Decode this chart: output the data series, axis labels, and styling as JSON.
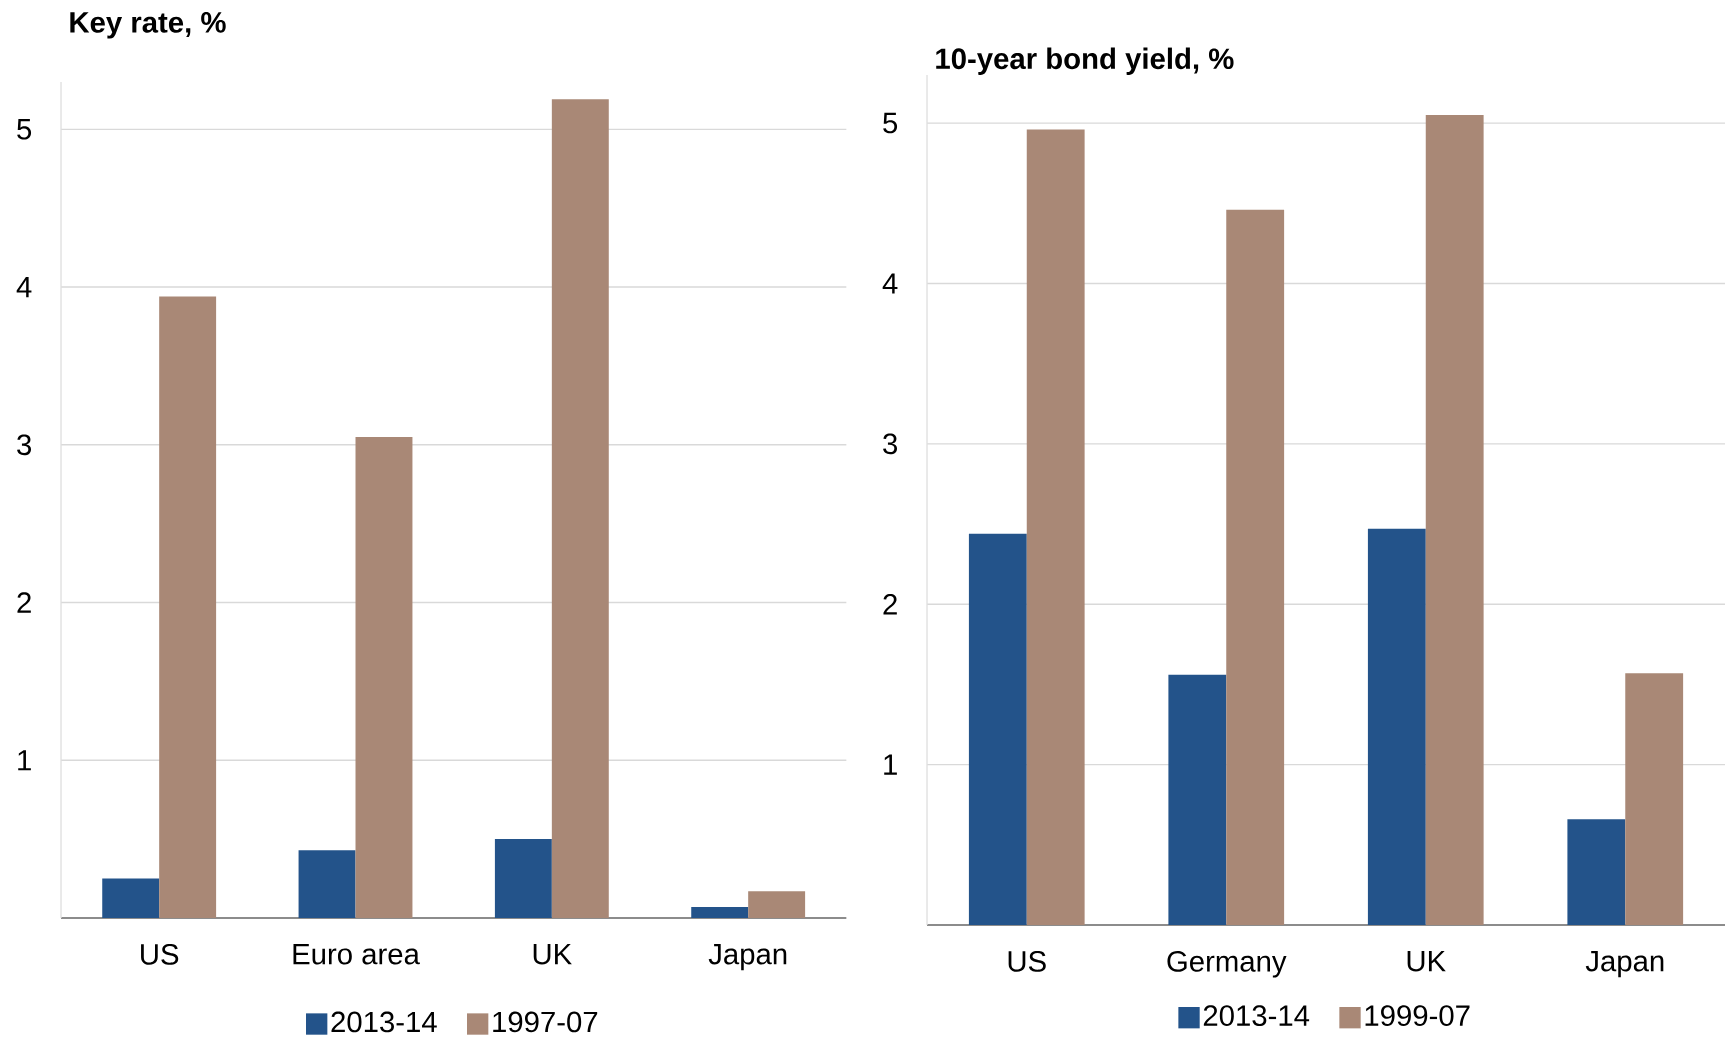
{
  "chart_data": [
    {
      "type": "bar",
      "title": "Key rate, %",
      "categories": [
        "US",
        "Euro area",
        "UK",
        "Japan"
      ],
      "series": [
        {
          "name": "2013-14",
          "color": "#23538a",
          "values": [
            0.25,
            0.43,
            0.5,
            0.07
          ]
        },
        {
          "name": "1997-07",
          "color": "#a98876",
          "values": [
            3.94,
            3.05,
            5.19,
            0.17
          ]
        }
      ],
      "ylim": [
        0,
        5.3
      ],
      "yticks": [
        1,
        2,
        3,
        4,
        5
      ],
      "grid": "y",
      "legend": "bottom"
    },
    {
      "type": "bar",
      "title": "10-year bond  yield, %",
      "categories": [
        "US",
        "Germany",
        "UK",
        "Japan"
      ],
      "series": [
        {
          "name": "2013-14",
          "color": "#23538a",
          "values": [
            2.44,
            1.56,
            2.47,
            0.66
          ]
        },
        {
          "name": "1999-07",
          "color": "#a98876",
          "values": [
            4.96,
            4.46,
            5.05,
            1.57
          ]
        }
      ],
      "ylim": [
        0,
        5.3
      ],
      "yticks": [
        1,
        2,
        3,
        4,
        5
      ],
      "grid": "y",
      "legend": "bottom"
    }
  ]
}
